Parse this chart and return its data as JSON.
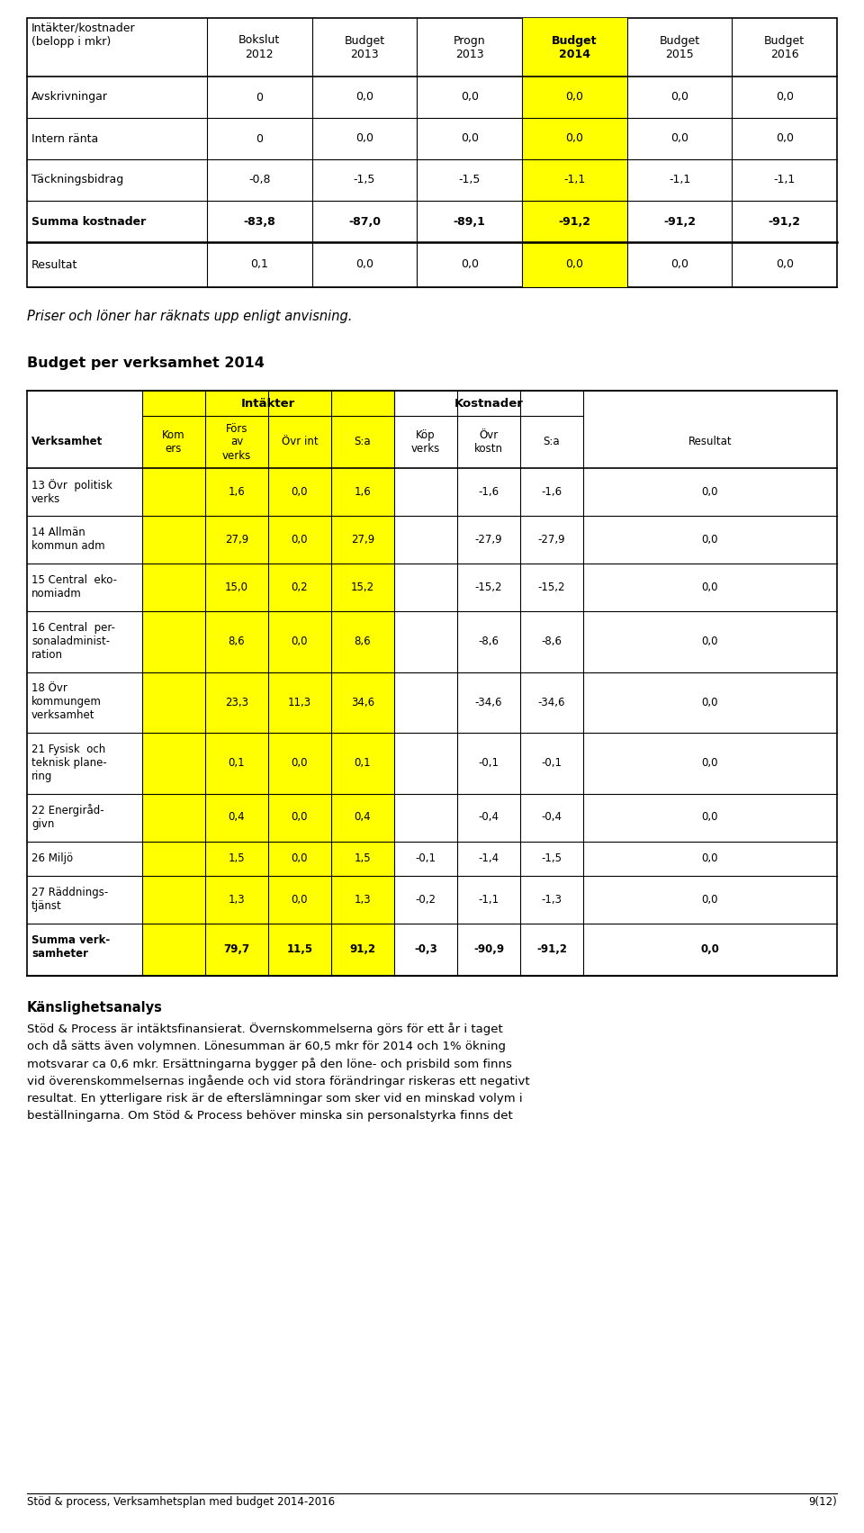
{
  "page_bg": "#ffffff",
  "yellow": "#ffff00",
  "black": "#000000",
  "top_table_title": "Intäkter/kostnader\n(belopp i mkr)",
  "top_table_headers": [
    "Bokslut\n2012",
    "Budget\n2013",
    "Progn\n2013",
    "Budget\n2014",
    "Budget\n2015",
    "Budget\n2016"
  ],
  "top_table_header_bold": [
    false,
    false,
    false,
    true,
    false,
    false
  ],
  "top_table_header_yellow": [
    false,
    false,
    false,
    true,
    false,
    false
  ],
  "top_table_rows": [
    {
      "label": "Avskrivningar",
      "bold": false,
      "double_line_above": false,
      "values": [
        "0",
        "0,0",
        "0,0",
        "0,0",
        "0,0",
        "0,0"
      ]
    },
    {
      "label": "Intern ränta",
      "bold": false,
      "double_line_above": false,
      "values": [
        "0",
        "0,0",
        "0,0",
        "0,0",
        "0,0",
        "0,0"
      ]
    },
    {
      "label": "Täckningsbidrag",
      "bold": false,
      "double_line_above": false,
      "values": [
        "-0,8",
        "-1,5",
        "-1,5",
        "-1,1",
        "-1,1",
        "-1,1"
      ]
    },
    {
      "label": "Summa kostnader",
      "bold": true,
      "double_line_above": false,
      "values": [
        "-83,8",
        "-87,0",
        "-89,1",
        "-91,2",
        "-91,2",
        "-91,2"
      ]
    },
    {
      "label": "Resultat",
      "bold": false,
      "double_line_above": true,
      "values": [
        "0,1",
        "0,0",
        "0,0",
        "0,0",
        "0,0",
        "0,0"
      ]
    }
  ],
  "italic_text": "Priser och löner har räknats upp enligt anvisning.",
  "section_title": "Budget per verksamhet 2014",
  "budget_rows": [
    {
      "label": "13 Övr  politisk\nverks",
      "bold": false,
      "nlines": 2,
      "values": [
        "",
        "1,6",
        "0,0",
        "1,6",
        "",
        "-1,6",
        "-1,6",
        "0,0"
      ]
    },
    {
      "label": "14 Allmän\nkommun adm",
      "bold": false,
      "nlines": 2,
      "values": [
        "",
        "27,9",
        "0,0",
        "27,9",
        "",
        "-27,9",
        "-27,9",
        "0,0"
      ]
    },
    {
      "label": "15 Central  eko-\nnomiadm",
      "bold": false,
      "nlines": 2,
      "values": [
        "",
        "15,0",
        "0,2",
        "15,2",
        "",
        "-15,2",
        "-15,2",
        "0,0"
      ]
    },
    {
      "label": "16 Central  per-\nsonaladminist-\nration",
      "bold": false,
      "nlines": 3,
      "values": [
        "",
        "8,6",
        "0,0",
        "8,6",
        "",
        "-8,6",
        "-8,6",
        "0,0"
      ]
    },
    {
      "label": "18 Övr\nkommungem\nverksamhet",
      "bold": false,
      "nlines": 3,
      "values": [
        "",
        "23,3",
        "11,3",
        "34,6",
        "",
        "-34,6",
        "-34,6",
        "0,0"
      ]
    },
    {
      "label": "21 Fysisk  och\nteknisk plane-\nring",
      "bold": false,
      "nlines": 3,
      "values": [
        "",
        "0,1",
        "0,0",
        "0,1",
        "",
        "-0,1",
        "-0,1",
        "0,0"
      ]
    },
    {
      "label": "22 Energiråd-\ngivn",
      "bold": false,
      "nlines": 2,
      "values": [
        "",
        "0,4",
        "0,0",
        "0,4",
        "",
        "-0,4",
        "-0,4",
        "0,0"
      ]
    },
    {
      "label": "26 Miljö",
      "bold": false,
      "nlines": 1,
      "values": [
        "",
        "1,5",
        "0,0",
        "1,5",
        "-0,1",
        "-1,4",
        "-1,5",
        "0,0"
      ]
    },
    {
      "label": "27 Räddnings-\ntjänst",
      "bold": false,
      "nlines": 2,
      "values": [
        "",
        "1,3",
        "0,0",
        "1,3",
        "-0,2",
        "-1,1",
        "-1,3",
        "0,0"
      ]
    },
    {
      "label": "Summa verk-\nsamheter",
      "bold": true,
      "nlines": 2,
      "values": [
        "",
        "79,7",
        "11,5",
        "91,2",
        "-0,3",
        "-90,9",
        "-91,2",
        "0,0"
      ]
    }
  ],
  "kanslighet_title": "Känslighetsanalys",
  "kanslighet_lines": [
    "Stöd & Process är intäktsfinansierat. Övernskommelserna görs för ett år i taget",
    "och då sätts även volymnen. Lönesumman är 60,5 mkr för 2014 och 1% ökning",
    "motsvarar ca 0,6 mkr. Ersättningarna bygger på den löne- och prisbild som finns",
    "vid överenskommelsernas ingående och vid stora förändringar riskeras ett negativt",
    "resultat. En ytterligare risk är de efterslämningar som sker vid en minskad volym i",
    "beställningarna. Om Stöd & Process behöver minska sin personalstyrka finns det"
  ],
  "footer_left": "Stöd & process, Verksamhetsplan med budget 2014-2016",
  "footer_right": "9(12)"
}
